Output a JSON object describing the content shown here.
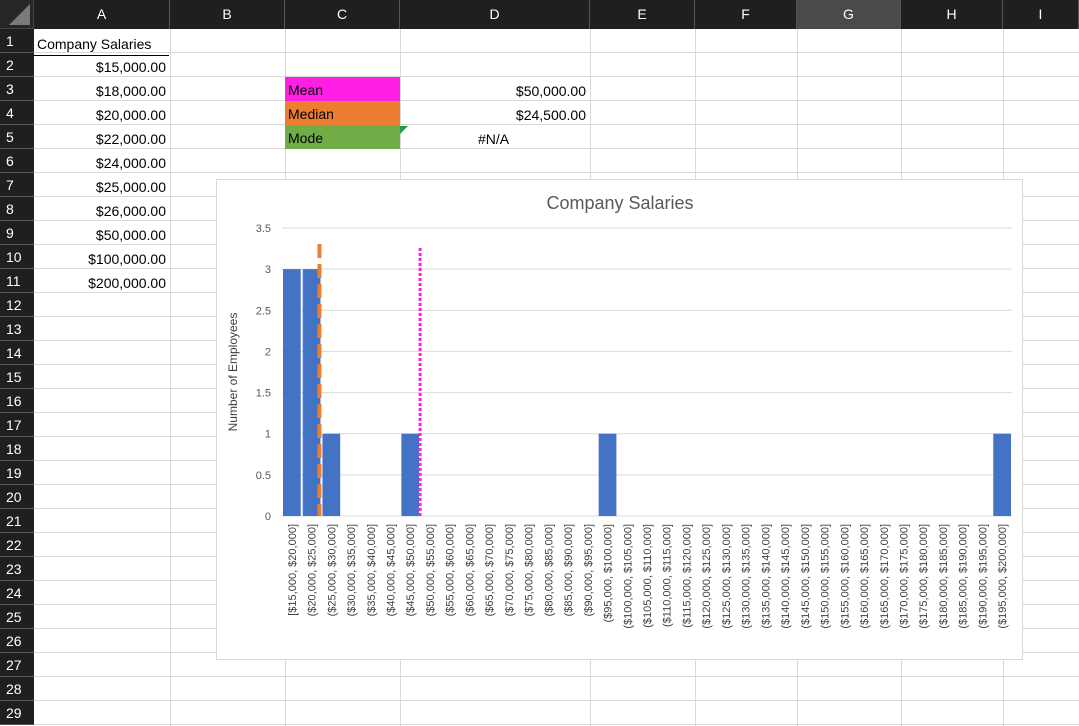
{
  "columns": [
    "A",
    "B",
    "C",
    "D",
    "E",
    "F",
    "G",
    "H",
    "I"
  ],
  "rows": [
    "1",
    "2",
    "3",
    "4",
    "5",
    "6",
    "7",
    "8",
    "9",
    "10",
    "11",
    "12",
    "13",
    "14",
    "15",
    "16",
    "17",
    "18",
    "19",
    "20",
    "21",
    "22",
    "23",
    "24",
    "25",
    "26",
    "27",
    "28",
    "29"
  ],
  "cells": {
    "a1": "Company Salaries",
    "a_values": [
      "$15,000.00",
      "$18,000.00",
      "$20,000.00",
      "$22,000.00",
      "$24,000.00",
      "$25,000.00",
      "$26,000.00",
      "$50,000.00",
      "$100,000.00",
      "$200,000.00"
    ],
    "stats": [
      {
        "label": "Mean",
        "value": "$50,000.00",
        "color": "#ff1fe4"
      },
      {
        "label": "Median",
        "value": "$24,500.00",
        "color": "#ed7d31"
      },
      {
        "label": "Mode",
        "value": "#N/A",
        "color": "#70ad47"
      }
    ]
  },
  "chart_data": {
    "type": "bar",
    "title": "Company Salaries",
    "xlabel": "",
    "ylabel": "Number of Employees",
    "ylim": [
      0,
      3.5
    ],
    "yticks": [
      "0",
      "0.5",
      "1",
      "1.5",
      "2",
      "2.5",
      "3",
      "3.5"
    ],
    "categories": [
      "[$15,000, $20,000]",
      "($20,000, $25,000]",
      "($25,000, $30,000]",
      "($30,000, $35,000]",
      "($35,000, $40,000]",
      "($40,000, $45,000]",
      "($45,000, $50,000]",
      "($50,000, $55,000]",
      "($55,000, $60,000]",
      "($60,000, $65,000]",
      "($65,000, $70,000]",
      "($70,000, $75,000]",
      "($75,000, $80,000]",
      "($80,000, $85,000]",
      "($85,000, $90,000]",
      "($90,000, $95,000]",
      "($95,000, $100,000]",
      "($100,000, $105,000]",
      "($105,000, $110,000]",
      "($110,000, $115,000]",
      "($115,000, $120,000]",
      "($120,000, $125,000]",
      "($125,000, $130,000]",
      "($130,000, $135,000]",
      "($135,000, $140,000]",
      "($140,000, $145,000]",
      "($145,000, $150,000]",
      "($150,000, $155,000]",
      "($155,000, $160,000]",
      "($160,000, $165,000]",
      "($165,000, $170,000]",
      "($170,000, $175,000]",
      "($175,000, $180,000]",
      "($180,000, $185,000]",
      "($185,000, $190,000]",
      "($190,000, $195,000]",
      "($195,000, $200,000]"
    ],
    "values": [
      3,
      3,
      1,
      0,
      0,
      0,
      1,
      0,
      0,
      0,
      0,
      0,
      0,
      0,
      0,
      0,
      1,
      0,
      0,
      0,
      0,
      0,
      0,
      0,
      0,
      0,
      0,
      0,
      0,
      0,
      0,
      0,
      0,
      0,
      0,
      0,
      1
    ],
    "bar_color": "#4472c4",
    "reference_lines": [
      {
        "label": "Median",
        "value": 24500,
        "color": "#ed7d31",
        "style": "dashed"
      },
      {
        "label": "Mean",
        "value": 50000,
        "color": "#ff1fe4",
        "style": "dotted"
      }
    ],
    "grid": true
  }
}
